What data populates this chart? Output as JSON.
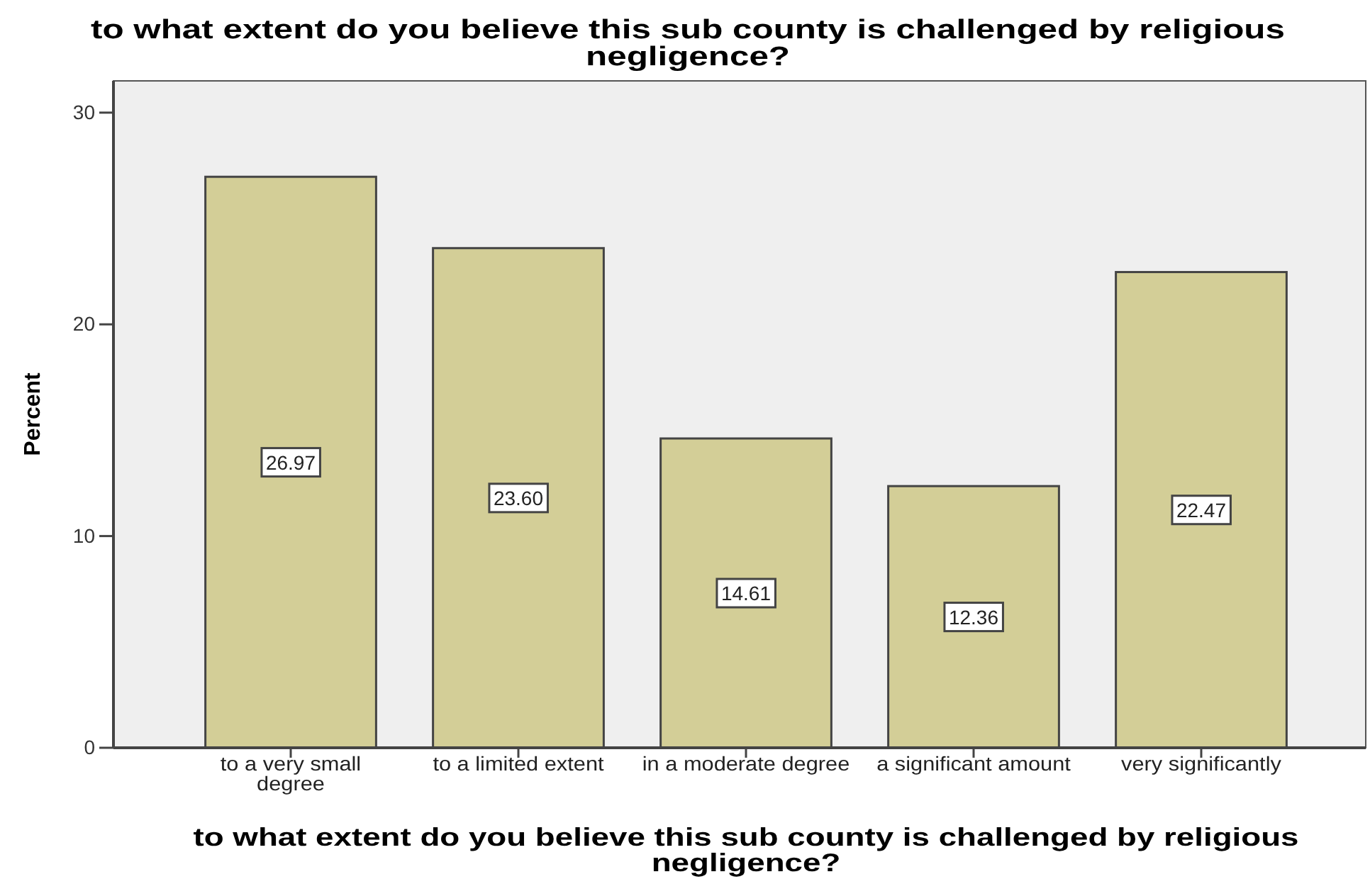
{
  "chart_data": {
    "type": "bar",
    "title": "to what extent do you believe this sub county is challenged by religious negligence?",
    "xlabel": "to what extent do you believe this sub county is challenged by religious negligence?",
    "ylabel": "Percent",
    "categories": [
      "to a very small degree",
      "to a limited extent",
      "in a moderate degree",
      "a significant amount",
      "very significantly"
    ],
    "values": [
      26.97,
      23.6,
      14.61,
      12.36,
      22.47
    ],
    "value_labels": [
      "26.97",
      "23.60",
      "14.61",
      "12.36",
      "22.47"
    ],
    "color": "#d3ce97",
    "ylim": [
      0,
      31.5
    ],
    "yticks": [
      0,
      10,
      20,
      30
    ]
  }
}
